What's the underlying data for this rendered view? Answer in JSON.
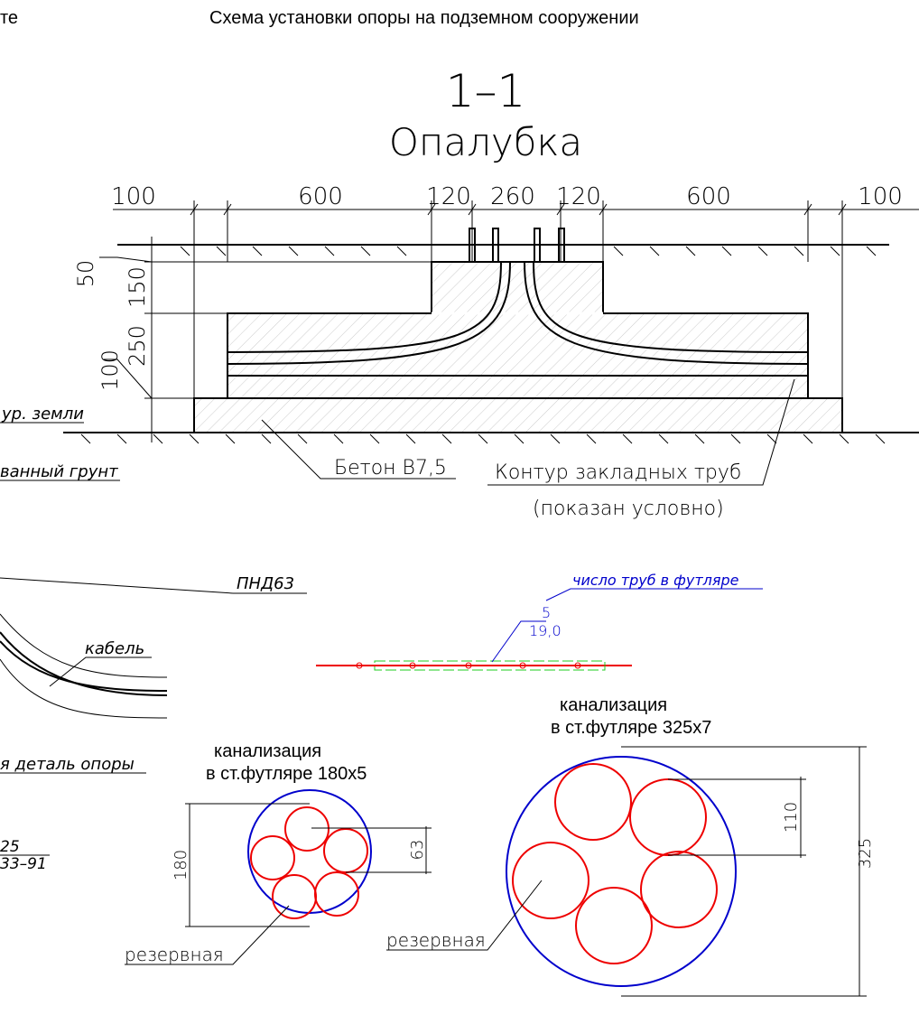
{
  "header": {
    "left": "те",
    "title": "Схема установки опоры на подземном сооружении"
  },
  "section": {
    "number": "1–1",
    "name": "Опалубка",
    "top_dims": [
      "100",
      "600",
      "120",
      "260",
      "120",
      "600",
      "100"
    ],
    "side_dims": [
      "50",
      "150",
      "250",
      "100"
    ],
    "ground_level": "ур. земли",
    "soil": "ванный грунт",
    "concrete": "Бетон В7,5",
    "pipes_contour": "Контур закладных труб",
    "pipes_note": "(показан условно)"
  },
  "detail": {
    "pipe": "ПНД63",
    "cable": "кабель",
    "part": "я деталь опоры",
    "ref_top": "25",
    "ref_bottom": "33–91"
  },
  "plan": {
    "note": "число труб в футляре",
    "count": "5",
    "length": "19,0"
  },
  "casing_small": {
    "line1": "канализация",
    "line2": "в ст.футляре 180х5",
    "diameter": "180",
    "pipe": "63",
    "reserve": "резервная"
  },
  "casing_large": {
    "line1": "канализация",
    "line2": "в ст.футляре 325х7",
    "diameter": "325",
    "pipe": "110",
    "reserve": "резервная"
  }
}
